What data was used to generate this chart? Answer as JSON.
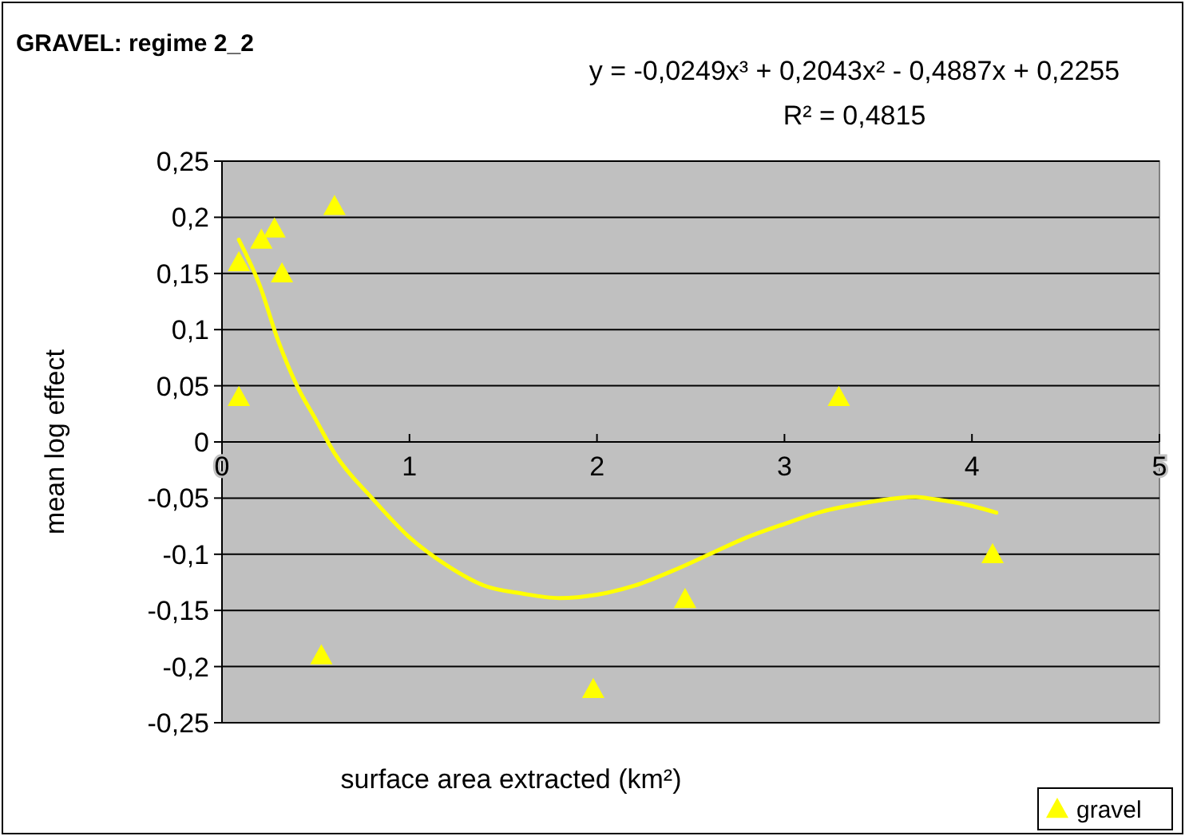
{
  "chart_data": {
    "type": "scatter",
    "title": "GRAVEL: regime 2_2",
    "xlabel": "surface area extracted (km²)",
    "ylabel": "mean log effect",
    "annotations": [
      "y = -0,0249x³ + 0,2043x² - 0,4887x + 0,2255",
      "R² = 0,4815"
    ],
    "xlim": [
      0,
      5
    ],
    "xticks": [
      0,
      1,
      2,
      3,
      4,
      5
    ],
    "ylim": [
      -0.25,
      0.25
    ],
    "yticks": [
      {
        "value": -0.25,
        "label": "-0,25"
      },
      {
        "value": -0.2,
        "label": "-0,2"
      },
      {
        "value": -0.15,
        "label": "-0,15"
      },
      {
        "value": -0.1,
        "label": "-0,1"
      },
      {
        "value": -0.05,
        "label": "-0,05"
      },
      0,
      {
        "value": 0.05,
        "label": "0,05"
      },
      {
        "value": 0.1,
        "label": "0,1"
      },
      {
        "value": 0.15,
        "label": "0,15"
      },
      {
        "value": 0.2,
        "label": "0,2"
      },
      {
        "value": 0.25,
        "label": "0,25"
      }
    ],
    "grid": "y",
    "legend": "bottom right",
    "marker": "triangle",
    "series": [
      {
        "name": "gravel",
        "color": "#ffff00",
        "x": [
          0.09,
          0.09,
          0.21,
          0.28,
          0.32,
          0.53,
          0.6,
          1.98,
          2.47,
          3.29,
          4.11
        ],
        "values": [
          0.04,
          0.16,
          0.18,
          0.19,
          0.15,
          -0.19,
          0.21,
          -0.22,
          -0.14,
          0.04,
          -0.1
        ]
      },
      {
        "type": "line",
        "color": "#ffff00",
        "marker": "none",
        "x": [
          0.09,
          0.2,
          0.3,
          0.4,
          0.5,
          0.6,
          0.8,
          1.0,
          1.2,
          1.4,
          1.6,
          1.8,
          2.0,
          2.2,
          2.4,
          2.6,
          2.8,
          3.0,
          3.2,
          3.4,
          3.6,
          3.7,
          3.8,
          4.0,
          4.13
        ],
        "values": [
          0.18,
          0.14,
          0.09,
          0.05,
          0.02,
          -0.01,
          -0.05,
          -0.085,
          -0.11,
          -0.128,
          -0.135,
          -0.139,
          -0.136,
          -0.128,
          -0.115,
          -0.1,
          -0.085,
          -0.073,
          -0.062,
          -0.055,
          -0.05,
          -0.049,
          -0.051,
          -0.057,
          -0.063
        ]
      }
    ]
  }
}
